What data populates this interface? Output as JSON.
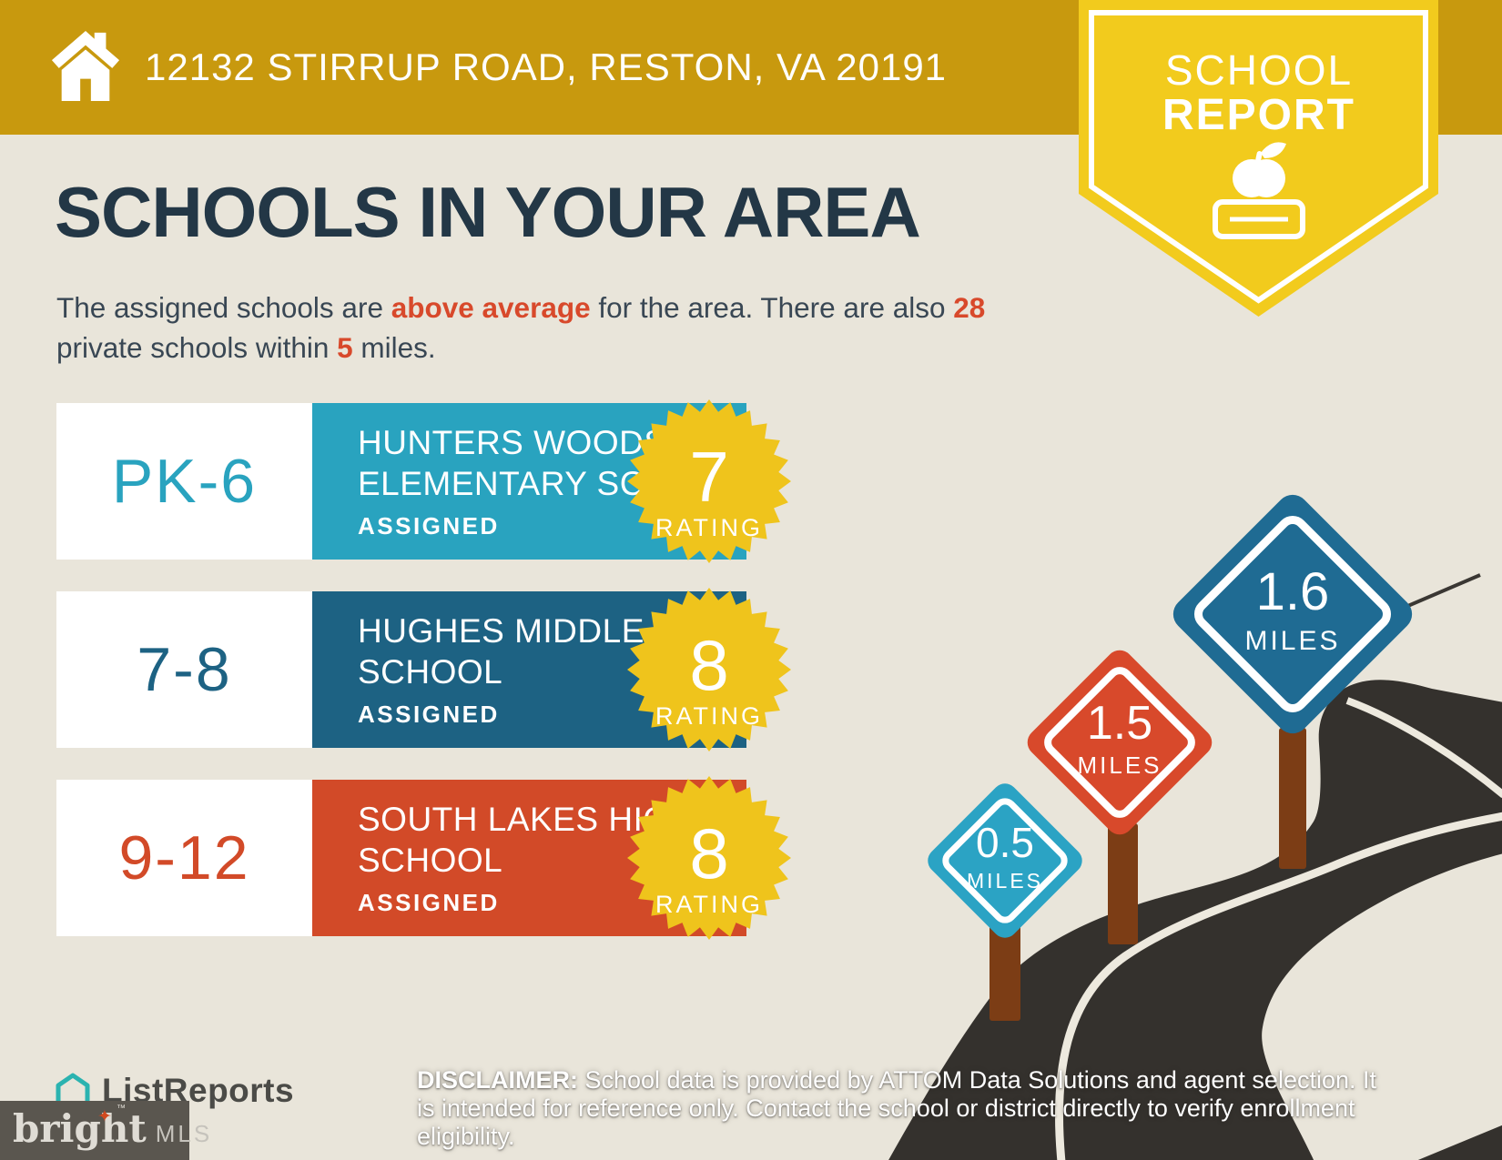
{
  "banner": {
    "address": "12132 STIRRUP ROAD, RESTON, VA 20191",
    "bg_color": "#C8990E"
  },
  "report_badge": {
    "line1": "SCHOOL",
    "line2": "REPORT",
    "bg_color": "#F2CB1D"
  },
  "intro": {
    "title": "SCHOOLS IN YOUR AREA",
    "subtitle": {
      "p1": "The assigned schools are ",
      "highlight1": "above average",
      "p2": " for the area. There are also ",
      "highlight2": "28",
      "p3": " private schools within ",
      "highlight3": "5",
      "p4": " miles."
    }
  },
  "schools": [
    {
      "grade": "PK-6",
      "name_line1": "HUNTERS WOODS",
      "name_line2": "ELEMENTARY SCHOOL",
      "status": "ASSIGNED",
      "rating": "7",
      "rating_label": "RATING",
      "color": "#29A3BF"
    },
    {
      "grade": "7-8",
      "name_line1": "HUGHES MIDDLE",
      "name_line2": "SCHOOL",
      "status": "ASSIGNED",
      "rating": "8",
      "rating_label": "RATING",
      "color": "#1D6283"
    },
    {
      "grade": "9-12",
      "name_line1": "SOUTH LAKES HIGH",
      "name_line2": "SCHOOL",
      "status": "ASSIGNED",
      "rating": "8",
      "rating_label": "RATING",
      "color": "#D24A28"
    }
  ],
  "road_signs": [
    {
      "distance": "0.5",
      "unit": "MILES",
      "color": "#2BA3C4"
    },
    {
      "distance": "1.5",
      "unit": "MILES",
      "color": "#D8492B"
    },
    {
      "distance": "1.6",
      "unit": "MILES",
      "color": "#1F6B93"
    }
  ],
  "footer": {
    "listreports_logo": "ListReports",
    "bright_logo_word": "bright",
    "bright_logo_star": "✦",
    "bright_logo_tm": "™",
    "bright_logo_mls": "MLS",
    "disclaimer_label": "DISCLAIMER:",
    "disclaimer_text": " School data is provided by ATTOM Data Solutions and agent selection. It is intended for reference only. Contact the school or district directly to verify enrollment eligibility."
  },
  "colors": {
    "background": "#E9E5DA",
    "rating_star_yellow": "#EFC41C",
    "road_dark": "#34312D",
    "road_line": "#EDE9DE",
    "sign_post_brown": "#7C3D15",
    "accent_red": "#D8492B",
    "heading_navy": "#233746"
  }
}
